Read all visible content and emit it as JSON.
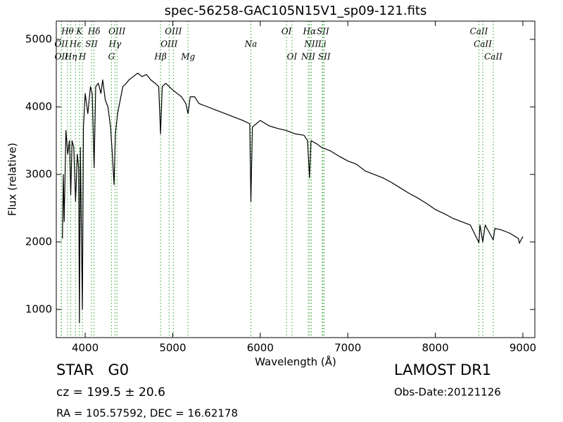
{
  "chart_data": {
    "type": "line",
    "title": "spec-56258-GAC105N15V1_sp09-121.fits",
    "xlabel": "Wavelength (Å)",
    "ylabel": "Flux (relative)",
    "xlim": [
      3670,
      9137
    ],
    "ylim": [
      583,
      5271
    ],
    "xticks": [
      4000,
      5000,
      6000,
      7000,
      8000,
      9000
    ],
    "yticks": [
      1000,
      2000,
      3000,
      4000,
      5000
    ],
    "series": [
      {
        "color": "#000000",
        "x": [
          3740,
          3750,
          3760,
          3780,
          3800,
          3820,
          3835,
          3850,
          3870,
          3890,
          3910,
          3925,
          3934,
          3945,
          3968,
          3980,
          4000,
          4030,
          4060,
          4080,
          4102,
          4120,
          4150,
          4180,
          4200,
          4230,
          4260,
          4290,
          4310,
          4330,
          4345,
          4370,
          4400,
          4430,
          4470,
          4500,
          4550,
          4600,
          4650,
          4700,
          4750,
          4800,
          4840,
          4861,
          4880,
          4920,
          4960,
          5000,
          5050,
          5100,
          5150,
          5175,
          5200,
          5250,
          5300,
          5400,
          5500,
          5600,
          5700,
          5800,
          5880,
          5893,
          5910,
          6000,
          6100,
          6200,
          6300,
          6400,
          6500,
          6540,
          6563,
          6580,
          6650,
          6700,
          6800,
          6900,
          7000,
          7100,
          7200,
          7300,
          7400,
          7500,
          7600,
          7700,
          7800,
          7900,
          8000,
          8100,
          8200,
          8300,
          8400,
          8498,
          8510,
          8542,
          8570,
          8662,
          8680,
          8750,
          8850,
          8950,
          8960,
          9000
        ],
        "values": [
          2050,
          3000,
          2300,
          3650,
          3300,
          3500,
          2700,
          3500,
          3400,
          2600,
          3300,
          3100,
          800,
          3400,
          1000,
          3700,
          4200,
          3900,
          4300,
          4200,
          3100,
          4300,
          4350,
          4200,
          4400,
          4100,
          4000,
          3700,
          3300,
          2850,
          3600,
          3900,
          4100,
          4300,
          4350,
          4400,
          4450,
          4500,
          4450,
          4480,
          4400,
          4350,
          4300,
          3600,
          4300,
          4350,
          4300,
          4250,
          4200,
          4150,
          4050,
          3900,
          4150,
          4150,
          4050,
          4000,
          3950,
          3900,
          3850,
          3800,
          3750,
          2600,
          3700,
          3800,
          3720,
          3680,
          3650,
          3600,
          3580,
          3500,
          2950,
          3500,
          3450,
          3400,
          3350,
          3270,
          3200,
          3150,
          3050,
          3000,
          2950,
          2880,
          2800,
          2720,
          2650,
          2570,
          2480,
          2420,
          2350,
          2300,
          2250,
          1990,
          2250,
          2000,
          2250,
          2030,
          2200,
          2180,
          2130,
          2050,
          1980,
          2080
        ]
      }
    ],
    "line_color": "#2ca02c",
    "annotation_tiers": [
      [
        {
          "label": "Hθ",
          "x": 3798
        },
        {
          "label": "K",
          "x": 3934
        },
        {
          "label": "Hδ",
          "x": 4102
        },
        {
          "label": "OIII",
          "x": 4363
        },
        {
          "label": "OIII",
          "x": 5007
        },
        {
          "label": "OI",
          "x": 6300
        },
        {
          "label": "Hα",
          "x": 6563
        },
        {
          "label": "SII",
          "x": 6716
        },
        {
          "label": "CaII",
          "x": 8498
        }
      ],
      [
        {
          "label": "OII",
          "x": 3727
        },
        {
          "label": "Hε",
          "x": 3889
        },
        {
          "label": "SII",
          "x": 4072
        },
        {
          "label": "Hγ",
          "x": 4340
        },
        {
          "label": "OIII",
          "x": 4959
        },
        {
          "label": "Na",
          "x": 5893
        },
        {
          "label": "NII",
          "x": 6583
        },
        {
          "label": "Li",
          "x": 6708
        },
        {
          "label": "CaII",
          "x": 8542
        }
      ],
      [
        {
          "label": "OII",
          "x": 3729
        },
        {
          "label": "Hη",
          "x": 3835
        },
        {
          "label": "H",
          "x": 3968
        },
        {
          "label": "G",
          "x": 4300
        },
        {
          "label": "Hβ",
          "x": 4861
        },
        {
          "label": "Mg",
          "x": 5175
        },
        {
          "label": "OI",
          "x": 6363
        },
        {
          "label": "NII",
          "x": 6548
        },
        {
          "label": "SII",
          "x": 6731
        },
        {
          "label": "CaII",
          "x": 8662
        }
      ]
    ]
  },
  "info": {
    "object": "STAR   G0",
    "redshift": "cz = 199.5 ± 20.6",
    "coords": "RA = 105.57592, DEC = 16.62178",
    "survey": "LAMOST DR1",
    "obs_date": "Obs-Date:20121126"
  }
}
